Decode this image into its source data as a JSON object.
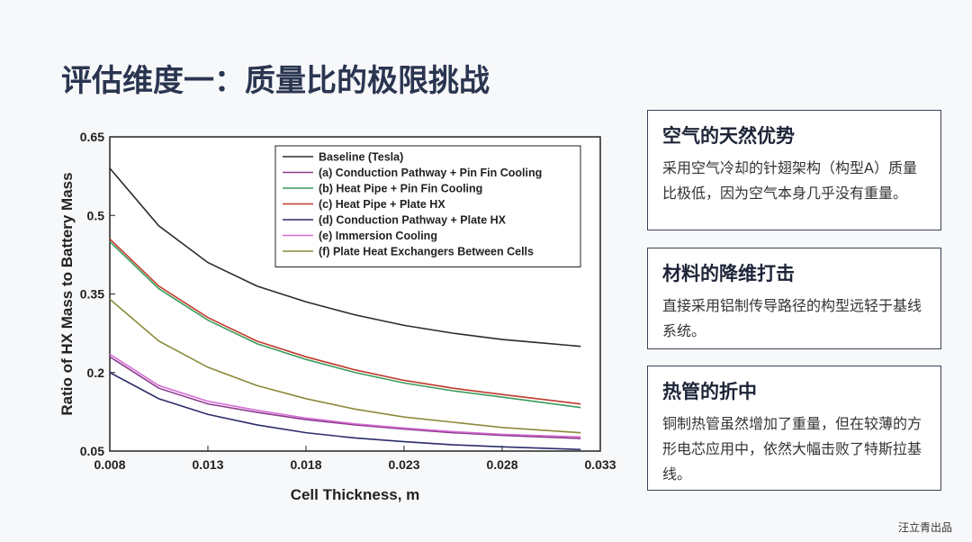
{
  "header": {
    "title": "评估维度一：质量比的极限挑战"
  },
  "chart_data": {
    "type": "line",
    "x_label": "Cell Thickness, m",
    "y_label": "Ratio of HX Mass to Battery Mass",
    "x": [
      0.008,
      0.0105,
      0.013,
      0.0155,
      0.018,
      0.0205,
      0.023,
      0.0255,
      0.028,
      0.032
    ],
    "xlim": [
      0.008,
      0.033
    ],
    "xticks": [
      0.008,
      0.013,
      0.018,
      0.023,
      0.028,
      0.033
    ],
    "ylim": [
      0.05,
      0.65
    ],
    "yticks": [
      0.05,
      0.2,
      0.35,
      0.5,
      0.65
    ],
    "legend": "upper right",
    "series": [
      {
        "name": "Baseline (Tesla)",
        "color": "#2b2b2b",
        "values": [
          0.59,
          0.48,
          0.41,
          0.365,
          0.335,
          0.31,
          0.29,
          0.275,
          0.263,
          0.25
        ]
      },
      {
        "name": "(a) Conduction Pathway + Pin Fin Cooling",
        "color": "#8b3a8b",
        "values": [
          0.23,
          0.17,
          0.14,
          0.124,
          0.11,
          0.1,
          0.092,
          0.085,
          0.08,
          0.074
        ]
      },
      {
        "name": "(b) Heat Pipe + Pin Fin Cooling",
        "color": "#3a9a5a",
        "values": [
          0.45,
          0.36,
          0.3,
          0.255,
          0.225,
          0.2,
          0.18,
          0.165,
          0.153,
          0.133
        ]
      },
      {
        "name": "(c) Heat Pipe + Plate HX",
        "color": "#c0392b",
        "values": [
          0.455,
          0.365,
          0.305,
          0.26,
          0.23,
          0.205,
          0.185,
          0.17,
          0.158,
          0.14
        ]
      },
      {
        "name": "(d) Conduction Pathway + Plate HX",
        "color": "#2c2c6c",
        "values": [
          0.2,
          0.15,
          0.12,
          0.1,
          0.085,
          0.075,
          0.068,
          0.062,
          0.058,
          0.053
        ]
      },
      {
        "name": "(e) Immersion Cooling",
        "color": "#d46ad4",
        "values": [
          0.235,
          0.175,
          0.145,
          0.128,
          0.113,
          0.102,
          0.094,
          0.087,
          0.082,
          0.077
        ]
      },
      {
        "name": "(f) Plate Heat Exchangers Between Cells",
        "color": "#8a8a3a",
        "values": [
          0.34,
          0.26,
          0.21,
          0.175,
          0.15,
          0.13,
          0.115,
          0.105,
          0.095,
          0.085
        ]
      }
    ]
  },
  "cards": [
    {
      "title": "空气的天然优势",
      "body": "采用空气冷却的针翅架构（构型A）质量比极低，因为空气本身几乎没有重量。"
    },
    {
      "title": "材料的降维打击",
      "body": "直接采用铝制传导路径的构型远轻于基线系统。"
    },
    {
      "title": "热管的折中",
      "body": "铜制热管虽然增加了重量，但在较薄的方形电芯应用中，依然大幅击败了特斯拉基线。"
    }
  ],
  "footer": "汪立青出品"
}
